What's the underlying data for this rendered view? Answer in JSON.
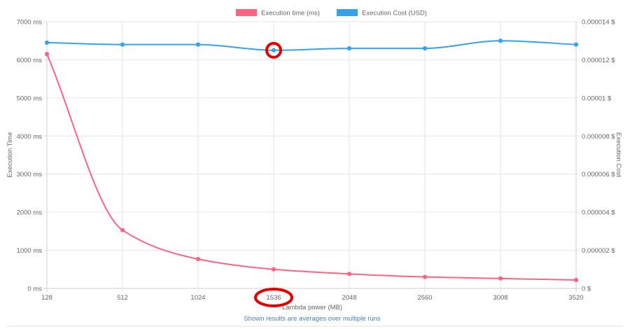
{
  "chart_data": {
    "type": "line",
    "x": [
      128,
      512,
      1024,
      1536,
      2048,
      2560,
      3008,
      3520
    ],
    "series": [
      {
        "name": "Execution time (ms)",
        "axis": "left",
        "color": "#ff6384",
        "values": [
          6150,
          1530,
          770,
          500,
          380,
          300,
          260,
          220
        ]
      },
      {
        "name": "Execution Cost (USD)",
        "axis": "right",
        "color": "#36a2eb",
        "values": [
          1.29e-05,
          1.28e-05,
          1.28e-05,
          1.25e-05,
          1.26e-05,
          1.26e-05,
          1.3e-05,
          1.28e-05
        ]
      }
    ],
    "xlabel": "Lambda power (MB)",
    "ylabel_left": "Execution Time",
    "ylabel_right": "Execution Cost",
    "ylim_left": [
      0,
      7000
    ],
    "ylim_right": [
      0,
      1.4e-05
    ],
    "left_ticks": [
      "0 ms",
      "1000 ms",
      "2000 ms",
      "3000 ms",
      "4000 ms",
      "5000 ms",
      "6000 ms",
      "7000 ms"
    ],
    "right_ticks": [
      "0 $",
      "0.000002 $",
      "0.000004 $",
      "0.000006 $",
      "0.000008 $",
      "0.00001 $",
      "0.000012 $",
      "0.000014 $"
    ],
    "x_ticks": [
      "128",
      "512",
      "1024",
      "1536",
      "2048",
      "2560",
      "3008",
      "3520"
    ],
    "grid": true,
    "legend_position": "top-center",
    "highlighted_x": "1536",
    "highlight_color": "#e00000",
    "footnote": "Shown results are averages over multiple runs"
  }
}
